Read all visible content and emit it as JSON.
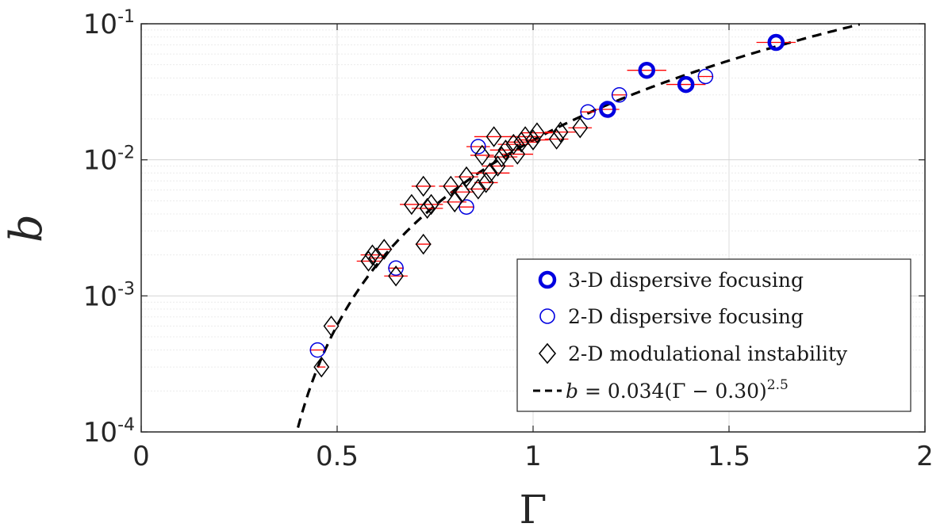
{
  "chart_data": {
    "type": "scatter",
    "xlabel": "Γ",
    "ylabel": "b",
    "xlim": [
      0,
      2
    ],
    "ylim": [
      0.0001,
      0.1
    ],
    "yscale": "log",
    "grid": true,
    "legend_position": "bottom-right",
    "x_ticks": [
      "0",
      "0.5",
      "1",
      "1.5",
      "2"
    ],
    "y_ticks": [
      {
        "base": "10",
        "exp": "-4"
      },
      {
        "base": "10",
        "exp": "-3"
      },
      {
        "base": "10",
        "exp": "-2"
      },
      {
        "base": "10",
        "exp": "-1"
      }
    ],
    "series": [
      {
        "name": "3-D dispersive focusing",
        "marker": "circle-thick",
        "color": "#0000e0",
        "points": [
          {
            "x": 1.19,
            "y": 0.0235,
            "xerr": 0.03
          },
          {
            "x": 1.29,
            "y": 0.0455,
            "xerr": 0.05
          },
          {
            "x": 1.39,
            "y": 0.0358,
            "xerr": 0.05
          },
          {
            "x": 1.62,
            "y": 0.073,
            "xerr": 0.05
          }
        ]
      },
      {
        "name": "2-D dispersive focusing",
        "marker": "circle",
        "color": "#0000e0",
        "points": [
          {
            "x": 0.45,
            "y": 0.0004,
            "xerr": 0.02
          },
          {
            "x": 0.65,
            "y": 0.0016,
            "xerr": 0.02
          },
          {
            "x": 0.83,
            "y": 0.0045,
            "xerr": 0.02
          },
          {
            "x": 0.86,
            "y": 0.0125,
            "xerr": 0.03
          },
          {
            "x": 1.14,
            "y": 0.0225,
            "xerr": 0.02
          },
          {
            "x": 1.22,
            "y": 0.03,
            "xerr": 0.02
          },
          {
            "x": 1.44,
            "y": 0.041,
            "xerr": 0.02
          }
        ]
      },
      {
        "name": "2-D modulational instability",
        "marker": "diamond",
        "color": "#000000",
        "points": [
          {
            "x": 0.46,
            "y": 0.0003,
            "xerr": 0.01
          },
          {
            "x": 0.485,
            "y": 0.0006,
            "xerr": 0.01
          },
          {
            "x": 0.58,
            "y": 0.0018,
            "xerr": 0.03
          },
          {
            "x": 0.59,
            "y": 0.002,
            "xerr": 0.03
          },
          {
            "x": 0.6,
            "y": 0.0019,
            "xerr": 0.02
          },
          {
            "x": 0.62,
            "y": 0.0022,
            "xerr": 0.02
          },
          {
            "x": 0.65,
            "y": 0.0014,
            "xerr": 0.03
          },
          {
            "x": 0.69,
            "y": 0.0047,
            "xerr": 0.03
          },
          {
            "x": 0.72,
            "y": 0.0024,
            "xerr": 0.02
          },
          {
            "x": 0.72,
            "y": 0.0064,
            "xerr": 0.03
          },
          {
            "x": 0.73,
            "y": 0.0044,
            "xerr": 0.04
          },
          {
            "x": 0.74,
            "y": 0.0047,
            "xerr": 0.03
          },
          {
            "x": 0.79,
            "y": 0.0064,
            "xerr": 0.03
          },
          {
            "x": 0.8,
            "y": 0.0049,
            "xerr": 0.03
          },
          {
            "x": 0.82,
            "y": 0.0058,
            "xerr": 0.03
          },
          {
            "x": 0.83,
            "y": 0.0075,
            "xerr": 0.03
          },
          {
            "x": 0.86,
            "y": 0.0061,
            "xerr": 0.03
          },
          {
            "x": 0.87,
            "y": 0.0108,
            "xerr": 0.03
          },
          {
            "x": 0.88,
            "y": 0.0068,
            "xerr": 0.03
          },
          {
            "x": 0.89,
            "y": 0.008,
            "xerr": 0.05
          },
          {
            "x": 0.9,
            "y": 0.0148,
            "xerr": 0.05
          },
          {
            "x": 0.91,
            "y": 0.009,
            "xerr": 0.04
          },
          {
            "x": 0.92,
            "y": 0.0105,
            "xerr": 0.04
          },
          {
            "x": 0.93,
            "y": 0.0118,
            "xerr": 0.04
          },
          {
            "x": 0.95,
            "y": 0.013,
            "xerr": 0.04
          },
          {
            "x": 0.96,
            "y": 0.011,
            "xerr": 0.04
          },
          {
            "x": 0.97,
            "y": 0.0135,
            "xerr": 0.04
          },
          {
            "x": 0.98,
            "y": 0.0148,
            "xerr": 0.04
          },
          {
            "x": 1.0,
            "y": 0.014,
            "xerr": 0.04
          },
          {
            "x": 1.01,
            "y": 0.0158,
            "xerr": 0.04
          },
          {
            "x": 1.06,
            "y": 0.0142,
            "xerr": 0.03
          },
          {
            "x": 1.07,
            "y": 0.016,
            "xerr": 0.04
          },
          {
            "x": 1.12,
            "y": 0.0172,
            "xerr": 0.03
          }
        ]
      }
    ],
    "fit": {
      "name": "b = 0.034(Γ − 0.30)^2.5",
      "label_prefix": "b",
      "label_mid": " = 0.034(Γ − 0.30)",
      "label_exp": "2.5",
      "coef": 0.034,
      "offset": 0.3,
      "power": 2.5,
      "x_range": [
        0.4,
        1.84
      ],
      "style": "dashed",
      "color": "#000000"
    }
  }
}
